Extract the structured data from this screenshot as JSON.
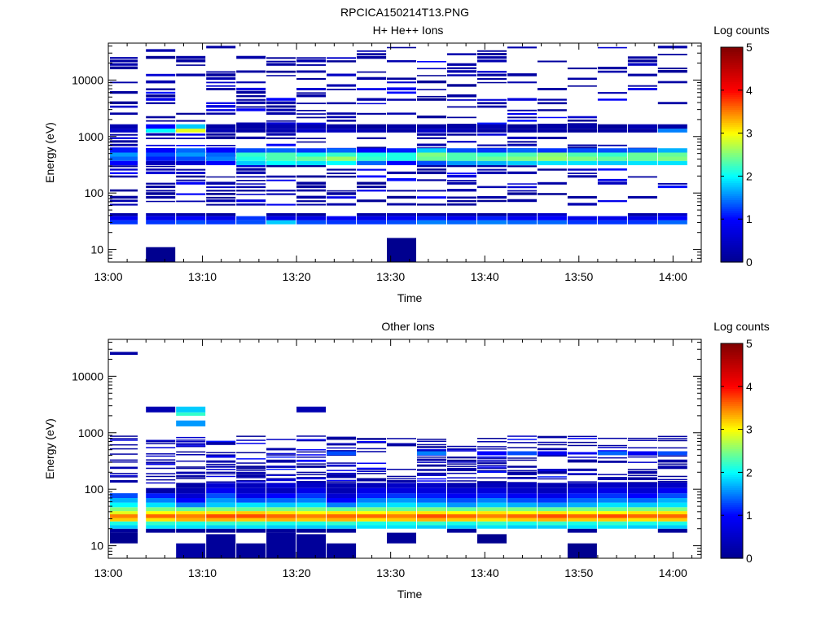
{
  "figure": {
    "title": "RPCICA150214T13.PNG"
  },
  "colors": {
    "colormap": [
      "#00008f",
      "#0000ff",
      "#00ffff",
      "#ffff00",
      "#ff0000",
      "#800000"
    ],
    "axis": "#000000",
    "background": "#ffffff"
  },
  "chart_data": [
    {
      "type": "heatmap",
      "title": "H+ He++ Ions",
      "xlabel": "Time",
      "ylabel": "Energy (eV)",
      "x_ticks": [
        "13:00",
        "13:10",
        "13:20",
        "13:30",
        "13:40",
        "13:50",
        "14:00"
      ],
      "x_range_minutes": [
        0,
        63
      ],
      "y_scale": "log",
      "y_ticks": [
        "10",
        "100",
        "1000",
        "10000"
      ],
      "ylim": [
        6,
        45000
      ],
      "colorbar": {
        "label": "Log counts",
        "range": [
          0,
          5
        ],
        "ticks": [
          "0",
          "1",
          "2",
          "3",
          "4",
          "5"
        ]
      },
      "time_bins_minutes": [
        0,
        4,
        7.2,
        10.4,
        13.6,
        16.8,
        20,
        23.2,
        26.4,
        29.6,
        32.8,
        36,
        39.2,
        42.4,
        45.6,
        48.8,
        52,
        55.2,
        58.4,
        61.6
      ],
      "bands": [
        {
          "e": [
            28,
            33
          ],
          "v": [
            1.2,
            1.2,
            1.3,
            1.2,
            1.3,
            1.8,
            1.3,
            1.2,
            1.2,
            1.3,
            1.5,
            1.4,
            1.5,
            1.4,
            1.4,
            1.2,
            1.2,
            1.2,
            1.4
          ]
        },
        {
          "e": [
            33,
            39
          ],
          "v": [
            0.9,
            0.8,
            1.0,
            0.8,
            1.2,
            0.8,
            0.8,
            0.9,
            0.8,
            0.9,
            1.1,
            0.9,
            1.1,
            0.9,
            1.0,
            0.8,
            0.8,
            0.8,
            1.0
          ]
        },
        {
          "e": [
            39,
            44
          ],
          "v": [
            0.2,
            0.3,
            0.2,
            0.1,
            0.0,
            0.2,
            0.1,
            0.0,
            0.2,
            0.3,
            0.2,
            0.2,
            0.1,
            0.3,
            0.5,
            0.0,
            0.0,
            0.2,
            0.5
          ]
        },
        {
          "e": [
            310,
            370
          ],
          "v": [
            1.0,
            0.4,
            0.6,
            1.0,
            1.8,
            2.0,
            1.9,
            2.0,
            1.4,
            1.0,
            1.3,
            1.6,
            1.7,
            1.8,
            1.9,
            1.9,
            1.8,
            1.9,
            1.9
          ]
        },
        {
          "e": [
            370,
            440
          ],
          "v": [
            1.4,
            1.1,
            1.3,
            1.5,
            2.1,
            2.3,
            2.4,
            2.6,
            2.2,
            2.1,
            2.4,
            2.3,
            2.4,
            2.5,
            2.6,
            2.5,
            2.4,
            2.4,
            2.5
          ]
        },
        {
          "e": [
            440,
            520
          ],
          "v": [
            1.6,
            1.3,
            1.6,
            1.4,
            2.2,
            2.3,
            2.1,
            2.2,
            2.1,
            2.1,
            2.5,
            2.3,
            2.2,
            2.3,
            2.5,
            2.3,
            2.2,
            2.4,
            2.4
          ]
        },
        {
          "e": [
            520,
            620
          ],
          "v": [
            1.1,
            1.0,
            1.4,
            1.0,
            1.3,
            1.4,
            1.2,
            1.4,
            1.0,
            1.1,
            1.8,
            1.3,
            1.2,
            1.4,
            1.2,
            1.3,
            1.3,
            1.4,
            1.7
          ]
        },
        {
          "e": [
            1180,
            1380
          ],
          "v": [
            0.5,
            2.0,
            2.9,
            0.3,
            0.2,
            0.3,
            0.5,
            0.4,
            0.3,
            0.2,
            0.5,
            0.3,
            0.2,
            0.2,
            0.2,
            0.1,
            0.2,
            0.2,
            1.5
          ]
        },
        {
          "e": [
            1380,
            1650
          ],
          "v": [
            0.3,
            1.0,
            1.8,
            0.2,
            0.2,
            0.3,
            0.3,
            0.2,
            0.1,
            0.2,
            0.2,
            0.2,
            0.3,
            0.1,
            0.2,
            0.2,
            0.1,
            0.3,
            0.2
          ]
        }
      ],
      "blocks": [
        {
          "bin": 1,
          "e": [
            6,
            11
          ],
          "v": 0.0
        },
        {
          "bin": 9,
          "e": [
            6,
            16
          ],
          "v": 0.0
        }
      ],
      "sparse": {
        "emin": 60,
        "emax": 42000,
        "prob": [
          0.72,
          0.7,
          0.68,
          0.67,
          0.68,
          0.67,
          0.68,
          0.66,
          0.52,
          0.44,
          0.6,
          0.6,
          0.66,
          0.42,
          0.36,
          0.28,
          0.32,
          0.2,
          0.22
        ]
      }
    },
    {
      "type": "heatmap",
      "title": "Other Ions",
      "xlabel": "Time",
      "ylabel": "Energy (eV)",
      "x_ticks": [
        "13:00",
        "13:10",
        "13:20",
        "13:30",
        "13:40",
        "13:50",
        "14:00"
      ],
      "x_range_minutes": [
        0,
        63
      ],
      "y_scale": "log",
      "y_ticks": [
        "10",
        "100",
        "1000",
        "10000"
      ],
      "ylim": [
        6,
        45000
      ],
      "colorbar": {
        "label": "Log counts",
        "range": [
          0,
          5
        ],
        "ticks": [
          "0",
          "1",
          "2",
          "3",
          "4",
          "5"
        ]
      },
      "time_bins_minutes": [
        0,
        4,
        7.2,
        10.4,
        13.6,
        16.8,
        20,
        23.2,
        26.4,
        29.6,
        32.8,
        36,
        39.2,
        42.4,
        45.6,
        48.8,
        52,
        55.2,
        58.4,
        61.6
      ],
      "bands": [
        {
          "e": [
            17,
            20
          ],
          "v": [
            0.1,
            0.1,
            0.1,
            0.1,
            0.1,
            0.1,
            0.1,
            0.1,
            0.0,
            0.0,
            0.0,
            0.1,
            0.0,
            0.0,
            0.0,
            0.1,
            0.0,
            0.0,
            0.1
          ]
        },
        {
          "e": [
            20,
            23
          ],
          "v": [
            1.8,
            1.9,
            1.9,
            1.8,
            1.9,
            1.8,
            1.8,
            1.8,
            1.9,
            1.9,
            1.8,
            1.8,
            1.9,
            1.8,
            1.8,
            1.9,
            1.9,
            1.8,
            1.8
          ]
        },
        {
          "e": [
            23,
            27
          ],
          "v": [
            2.1,
            2.2,
            2.1,
            2.2,
            2.2,
            2.1,
            2.1,
            2.2,
            2.1,
            2.1,
            2.2,
            2.1,
            2.2,
            2.1,
            2.2,
            2.1,
            2.2,
            2.1,
            2.1
          ]
        },
        {
          "e": [
            27,
            31
          ],
          "v": [
            3.2,
            3.1,
            3.3,
            3.3,
            3.2,
            3.3,
            3.2,
            3.3,
            3.1,
            3.2,
            3.3,
            3.2,
            3.1,
            3.2,
            3.3,
            3.2,
            3.2,
            3.1,
            3.2
          ]
        },
        {
          "e": [
            31,
            36
          ],
          "v": [
            3.5,
            3.6,
            3.5,
            3.7,
            3.7,
            3.6,
            3.5,
            3.6,
            3.6,
            3.5,
            3.7,
            3.6,
            3.5,
            3.6,
            3.7,
            3.6,
            3.7,
            3.6,
            3.6
          ]
        },
        {
          "e": [
            36,
            41
          ],
          "v": [
            2.9,
            3.0,
            3.1,
            3.1,
            3.2,
            3.1,
            3.0,
            3.1,
            3.0,
            3.1,
            3.1,
            3.0,
            3.1,
            3.0,
            3.1,
            3.0,
            3.0,
            3.1,
            3.1
          ]
        },
        {
          "e": [
            41,
            48
          ],
          "v": [
            2.5,
            2.5,
            2.4,
            2.5,
            2.4,
            2.5,
            2.5,
            2.4,
            2.5,
            2.4,
            2.5,
            2.4,
            2.5,
            2.5,
            2.4,
            2.5,
            2.4,
            2.5,
            2.5
          ]
        },
        {
          "e": [
            48,
            58
          ],
          "v": [
            2.0,
            1.9,
            1.5,
            1.8,
            1.9,
            1.8,
            1.9,
            1.5,
            1.8,
            1.9,
            1.8,
            1.6,
            1.8,
            1.7,
            1.6,
            1.7,
            1.9,
            1.8,
            1.9
          ]
        },
        {
          "e": [
            58,
            70
          ],
          "v": [
            1.7,
            1.5,
            1.0,
            1.6,
            1.3,
            1.4,
            1.5,
            1.0,
            1.5,
            1.6,
            1.4,
            1.3,
            1.5,
            1.3,
            1.2,
            1.4,
            1.5,
            1.4,
            1.7
          ]
        },
        {
          "e": [
            70,
            85
          ],
          "v": [
            1.3,
            1.1,
            0.6,
            1.3,
            0.8,
            1.0,
            1.2,
            0.6,
            1.1,
            1.2,
            1.1,
            0.9,
            1.1,
            0.9,
            0.8,
            1.1,
            1.2,
            1.0,
            1.3
          ]
        },
        {
          "e": [
            85,
            105
          ],
          "v": [
            0.0,
            0.2,
            0.3,
            0.9,
            0.5,
            0.4,
            0.8,
            0.3,
            0.8,
            0.7,
            0.7,
            0.6,
            0.7,
            0.5,
            0.4,
            0.7,
            0.8,
            0.6,
            0.9
          ]
        },
        {
          "e": [
            105,
            130
          ],
          "v": [
            0.0,
            0.0,
            0.2,
            0.6,
            0.4,
            0.6,
            0.5,
            0.3,
            0.4,
            0.5,
            0.5,
            0.3,
            0.4,
            0.4,
            0.3,
            0.4,
            0.5,
            0.4,
            0.5
          ]
        },
        {
          "e": [
            400,
            470
          ],
          "v": [
            0.0,
            0.0,
            0.0,
            0.0,
            0.0,
            0.0,
            0.0,
            1.3,
            0.0,
            0.0,
            1.5,
            0.0,
            1.0,
            1.3,
            0.9,
            0.0,
            1.4,
            0.9,
            1.3
          ]
        },
        {
          "e": [
            1300,
            1650
          ],
          "v": [
            0.0,
            0.0,
            1.6,
            0.0,
            0.0,
            0.0,
            0.0,
            0.0,
            0.0,
            0.0,
            0.0,
            0.0,
            0.0,
            0.0,
            0.0,
            0.0,
            0.0,
            0.0,
            0.0
          ]
        },
        {
          "e": [
            2000,
            2300
          ],
          "v": [
            0.0,
            0.0,
            2.2,
            0.0,
            0.0,
            0.0,
            0.0,
            0.0,
            0.0,
            0.0,
            0.0,
            0.0,
            0.0,
            0.0,
            0.0,
            0.0,
            0.0,
            0.0,
            0.0
          ]
        },
        {
          "e": [
            2300,
            2900
          ],
          "v": [
            0.0,
            0.3,
            1.8,
            0.0,
            0.0,
            0.0,
            0.3,
            0.0,
            0.0,
            0.0,
            0.0,
            0.0,
            0.0,
            0.0,
            0.0,
            0.0,
            0.0,
            0.0,
            0.0
          ]
        },
        {
          "e": [
            24000,
            27000
          ],
          "v": [
            0.2,
            0.0,
            0.0,
            0.0,
            0.0,
            0.0,
            0.0,
            0.0,
            0.0,
            0.0,
            0.0,
            0.0,
            0.0,
            0.0,
            0.0,
            0.0,
            0.0,
            0.0,
            0.0
          ]
        }
      ],
      "blocks": [
        {
          "bin": 0,
          "e": [
            11,
            17
          ],
          "v": 0.0
        },
        {
          "bin": 2,
          "e": [
            6,
            11
          ],
          "v": 0.2
        },
        {
          "bin": 3,
          "e": [
            6,
            16
          ],
          "v": 0.1
        },
        {
          "bin": 4,
          "e": [
            6,
            11
          ],
          "v": 0.1
        },
        {
          "bin": 5,
          "e": [
            6,
            17
          ],
          "v": 0.1
        },
        {
          "bin": 6,
          "e": [
            6,
            16
          ],
          "v": 0.1
        },
        {
          "bin": 7,
          "e": [
            6,
            11
          ],
          "v": 0.1
        },
        {
          "bin": 9,
          "e": [
            11,
            17
          ],
          "v": 0.1
        },
        {
          "bin": 12,
          "e": [
            11,
            16
          ],
          "v": 0.0
        },
        {
          "bin": 15,
          "e": [
            6,
            11
          ],
          "v": 0.0
        }
      ],
      "sparse": {
        "emin": 130,
        "emax": 900,
        "prob": [
          0.45,
          0.45,
          0.55,
          0.5,
          0.45,
          0.55,
          0.5,
          0.55,
          0.35,
          0.4,
          0.4,
          0.4,
          0.45,
          0.4,
          0.45,
          0.4,
          0.4,
          0.4,
          0.4
        ]
      }
    }
  ]
}
